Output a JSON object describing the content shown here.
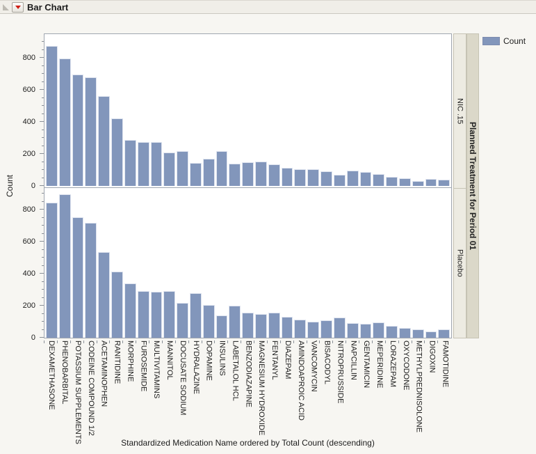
{
  "window": {
    "title": "Bar Chart"
  },
  "legend": {
    "label": "Count",
    "swatch_color": "#8296BB"
  },
  "chart_data": {
    "type": "bar",
    "title": "Bar Chart",
    "xlabel": "Standardized Medication Name ordered by Total Count (descending)",
    "ylabel": "Count",
    "panel_title": "Planned Treatment for Period 01",
    "panels": [
      "NIC .15",
      "Placebo"
    ],
    "legend_position": "top-right",
    "grid": false,
    "bar_color": "#8296BB",
    "yticks": [
      0,
      200,
      400,
      600,
      800
    ],
    "minor_tick_step": 50,
    "ylim": [
      0,
      950
    ],
    "categories": [
      "DEXAMETHASONE",
      "PHENOBARBITAL",
      "POTASSIUM SUPPLEMENTS",
      "CODEINE COMPOUND 1/2",
      "ACETAMINOPHEN",
      "RANITIDINE",
      "MORPHINE",
      "FUROSEMIDE",
      "MULTIVITAMINS",
      "MANNITOL",
      "DOCUSATE SODIUM",
      "HYDRALAZINE",
      "DOPAMINE",
      "INSULINS",
      "LABETALOL HCL",
      "BENZODIAZAPINE",
      "MAGNESIUM HYDROXIDE",
      "FENTANYL",
      "DIAZEPAM",
      "AMINDOAPROIC ACID",
      "VANCOMYCIN",
      "BISACODYL",
      "NITROPRUSSIDE",
      "NAPCILLIN",
      "GENTAMICIN",
      "MEPERIDINE",
      "LORAZEPAM",
      "OXYCODONE",
      "METHYLPREDNISOLONE",
      "DIGOXIN",
      "FAMOTIDINE"
    ],
    "series": [
      {
        "name": "NIC .15",
        "values": [
          875,
          795,
          695,
          680,
          560,
          420,
          285,
          275,
          272,
          210,
          218,
          142,
          168,
          218,
          137,
          146,
          151,
          133,
          112,
          103,
          103,
          93,
          71,
          95,
          89,
          73,
          58,
          49,
          31,
          45,
          38
        ]
      },
      {
        "name": "Placebo",
        "values": [
          845,
          895,
          750,
          718,
          535,
          415,
          337,
          291,
          286,
          291,
          219,
          277,
          204,
          138,
          198,
          158,
          148,
          156,
          131,
          113,
          100,
          108,
          126,
          91,
          86,
          94,
          76,
          59,
          54,
          37,
          51
        ]
      }
    ]
  }
}
